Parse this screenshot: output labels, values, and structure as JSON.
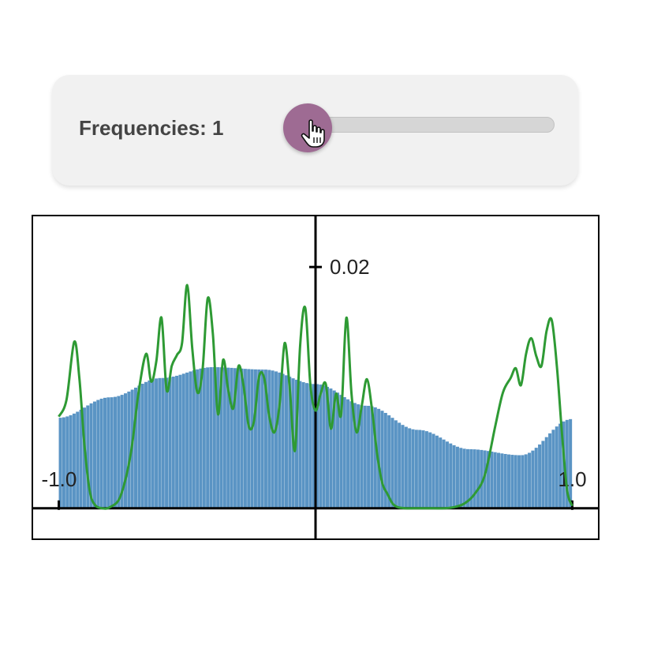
{
  "control": {
    "label": "Frequencies: 1",
    "slider": {
      "min": 1,
      "max": 20,
      "value": 1
    },
    "thumb_color": "#9e6b93"
  },
  "chart_data": {
    "type": "bar",
    "xlim": [
      -1.1,
      1.1
    ],
    "ylim": [
      -0.0025,
      0.0242
    ],
    "bar_color": "#5a94c4",
    "line_color": "#2e9a34",
    "tick_labels": {
      "y_top": "0.02",
      "x_left": "-1.0",
      "x_right": "1.0"
    },
    "bar_curve": {
      "description_points_x": [
        -1.0,
        -0.8,
        -0.6,
        -0.4,
        -0.2,
        0.0,
        0.2,
        0.4,
        0.6,
        0.8,
        1.0
      ],
      "y": [
        0.0075,
        0.0092,
        0.0108,
        0.0117,
        0.0115,
        0.0103,
        0.0085,
        0.0065,
        0.0049,
        0.0044,
        0.0074
      ]
    },
    "bar_count": 150,
    "line": {
      "x": [
        -1.0,
        -0.97,
        -0.94,
        -0.92,
        -0.9,
        -0.88,
        -0.86,
        -0.83,
        -0.8,
        -0.76,
        -0.72,
        -0.69,
        -0.66,
        -0.64,
        -0.62,
        -0.6,
        -0.58,
        -0.56,
        -0.54,
        -0.52,
        -0.5,
        -0.48,
        -0.46,
        -0.44,
        -0.42,
        -0.4,
        -0.38,
        -0.36,
        -0.34,
        -0.32,
        -0.3,
        -0.28,
        -0.26,
        -0.24,
        -0.22,
        -0.2,
        -0.18,
        -0.16,
        -0.14,
        -0.12,
        -0.1,
        -0.08,
        -0.06,
        -0.04,
        -0.02,
        0.0,
        0.02,
        0.04,
        0.06,
        0.08,
        0.1,
        0.12,
        0.14,
        0.16,
        0.18,
        0.2,
        0.22,
        0.24,
        0.26,
        0.28,
        0.3,
        0.32,
        0.35,
        0.38,
        0.42,
        0.46,
        0.5,
        0.54,
        0.58,
        0.62,
        0.66,
        0.7,
        0.73,
        0.76,
        0.78,
        0.8,
        0.82,
        0.84,
        0.86,
        0.88,
        0.9,
        0.92,
        0.94,
        0.96,
        0.98,
        1.0
      ],
      "y": [
        0.0076,
        0.009,
        0.0138,
        0.0108,
        0.0052,
        0.0015,
        0.0003,
        0.0,
        0.0001,
        0.001,
        0.0045,
        0.0095,
        0.0128,
        0.0105,
        0.0122,
        0.0158,
        0.0098,
        0.0118,
        0.0127,
        0.0137,
        0.0185,
        0.0132,
        0.0096,
        0.0115,
        0.0174,
        0.0145,
        0.0078,
        0.0123,
        0.0098,
        0.0083,
        0.0118,
        0.0101,
        0.0068,
        0.0072,
        0.0109,
        0.0108,
        0.0076,
        0.0063,
        0.0086,
        0.0137,
        0.0098,
        0.0048,
        0.0135,
        0.0166,
        0.0102,
        0.0081,
        0.0095,
        0.0103,
        0.0066,
        0.0095,
        0.0078,
        0.0158,
        0.0095,
        0.0063,
        0.0085,
        0.0107,
        0.0082,
        0.0045,
        0.0021,
        0.0012,
        0.0004,
        0.0001,
        0.0,
        0.0,
        0.0,
        0.0,
        0.0,
        0.0001,
        0.0004,
        0.0012,
        0.0028,
        0.0068,
        0.0096,
        0.0108,
        0.0116,
        0.0102,
        0.0128,
        0.0141,
        0.0126,
        0.0118,
        0.0147,
        0.0156,
        0.0118,
        0.0062,
        0.0015,
        0.0002
      ]
    }
  }
}
